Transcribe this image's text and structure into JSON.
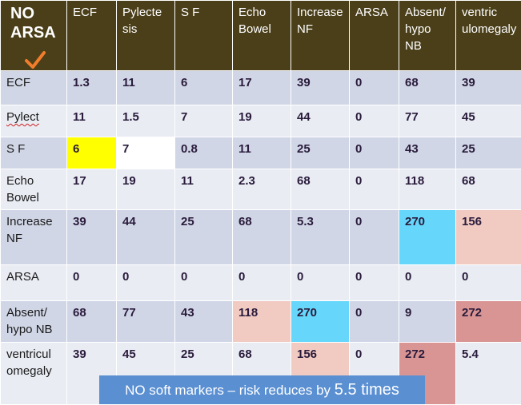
{
  "table": {
    "corner_line1": "NO",
    "corner_line2": "ARSA",
    "corner_icon": "checkmark-icon",
    "columns": [
      [
        "ECF"
      ],
      [
        "Pylecte",
        "sis"
      ],
      [
        "S F"
      ],
      [
        "Echo",
        "Bowel"
      ],
      [
        "Increase",
        "NF"
      ],
      [
        "ARSA"
      ],
      [
        "Absent/",
        "hypo",
        "NB"
      ],
      [
        "ventric",
        "ulomegaly"
      ]
    ],
    "rows": [
      {
        "label": [
          "ECF"
        ],
        "values": [
          "1.3",
          "11",
          "6",
          "17",
          "39",
          "0",
          "68",
          "39"
        ]
      },
      {
        "label": [
          "Pylect"
        ],
        "values": [
          "11",
          "1.5",
          "7",
          "19",
          "44",
          "0",
          "77",
          "45"
        ]
      },
      {
        "label": [
          "S F"
        ],
        "values": [
          "6",
          "7",
          "0.8",
          "11",
          "25",
          "0",
          "43",
          "25"
        ]
      },
      {
        "label": [
          "Echo",
          "Bowel"
        ],
        "values": [
          "17",
          "19",
          "11",
          "2.3",
          "68",
          "0",
          "118",
          "68"
        ]
      },
      {
        "label": [
          "Increase",
          "NF"
        ],
        "values": [
          "39",
          "44",
          "25",
          "68",
          "5.3",
          "0",
          "270",
          "156"
        ]
      },
      {
        "label": [
          "ARSA"
        ],
        "values": [
          "0",
          "0",
          "0",
          "0",
          "0",
          "0",
          "0",
          "0"
        ]
      },
      {
        "label": [
          "Absent/",
          "hypo NB"
        ],
        "values": [
          "68",
          "77",
          "43",
          "118",
          "270",
          "0",
          "9",
          "272"
        ]
      },
      {
        "label": [
          "ventricul",
          "omegaly"
        ],
        "values": [
          "39",
          "45",
          "25",
          "68",
          "156",
          "0",
          "272",
          "5.4"
        ]
      }
    ]
  },
  "banner": {
    "text": "NO soft markers – risk reduces by ",
    "factor": "5.5 times"
  },
  "colors": {
    "header_bg": "#4b3f19",
    "row_odd": "#d0d6e6",
    "row_even": "#e9ecf3",
    "highlight_yellow": "#ffff00",
    "highlight_cyan": "#66d7fb",
    "highlight_pink": "#f1cbc2",
    "highlight_rose": "#d99594",
    "checkmark": "#f07d2a",
    "banner_bg": "#5a8fd2"
  }
}
